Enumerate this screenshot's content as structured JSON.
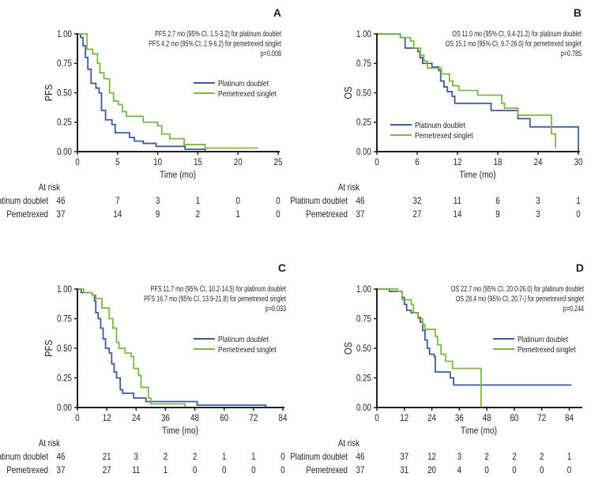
{
  "chart_data": [
    {
      "type": "line",
      "panel_label": "A",
      "ylabel": "PFS",
      "xlabel": "Time (mo)",
      "xlim": [
        0,
        25
      ],
      "ylim": [
        0,
        1
      ],
      "xticks": [
        "0",
        "5",
        "10",
        "15",
        "20",
        "25"
      ],
      "yticks": [
        "0.00",
        "0.25",
        "0.50",
        "0.75",
        "1.00"
      ],
      "annotation": [
        "PFS 2.7 mo (95% CI, 1.5-3.2) for platinum doublet",
        "PFS 4.2 mo  (95% CI, 2.9-6.2) for pemetrexed singlet",
        "p=0.008"
      ],
      "legend_placement": "center-right",
      "series": [
        {
          "name": "Platinum doublet",
          "color": "#3d5b99",
          "steps": [
            [
              0,
              1
            ],
            [
              0.4,
              0.97
            ],
            [
              0.7,
              0.9
            ],
            [
              1.0,
              0.8
            ],
            [
              1.3,
              0.7
            ],
            [
              1.7,
              0.58
            ],
            [
              2.3,
              0.54
            ],
            [
              2.7,
              0.5
            ],
            [
              3.0,
              0.35
            ],
            [
              3.5,
              0.27
            ],
            [
              4.3,
              0.23
            ],
            [
              4.7,
              0.16
            ],
            [
              6.5,
              0.12
            ],
            [
              7.1,
              0.09
            ],
            [
              8.2,
              0.07
            ],
            [
              9.8,
              0.045
            ],
            [
              13.4,
              0.02
            ],
            [
              15.9,
              0
            ]
          ],
          "end": 15.9
        },
        {
          "name": "Pemetrexed singlet",
          "color": "#7db547",
          "steps": [
            [
              0,
              1
            ],
            [
              1.2,
              0.87
            ],
            [
              1.9,
              0.83
            ],
            [
              2.5,
              0.75
            ],
            [
              2.8,
              0.67
            ],
            [
              3.3,
              0.62
            ],
            [
              4.0,
              0.5
            ],
            [
              4.5,
              0.43
            ],
            [
              5.1,
              0.4
            ],
            [
              5.6,
              0.34
            ],
            [
              6.1,
              0.3
            ],
            [
              8.2,
              0.25
            ],
            [
              10.0,
              0.22
            ],
            [
              10.5,
              0.15
            ],
            [
              11.5,
              0.11
            ],
            [
              13.3,
              0.06
            ],
            [
              15.9,
              0.03
            ]
          ],
          "end": 22.5
        }
      ],
      "at_risk": {
        "title": "At risk",
        "rows": [
          {
            "label": "Platinum doublet",
            "values": [
              "46",
              "7",
              "3",
              "1",
              "0",
              "0"
            ]
          },
          {
            "label": "Pemetrexed",
            "values": [
              "37",
              "14",
              "9",
              "2",
              "1",
              "0"
            ]
          }
        ]
      }
    },
    {
      "type": "line",
      "panel_label": "B",
      "ylabel": "OS",
      "xlabel": "Time (mo)",
      "xlim": [
        0,
        30
      ],
      "ylim": [
        0,
        1
      ],
      "xticks": [
        "0",
        "6",
        "12",
        "18",
        "24",
        "30"
      ],
      "yticks": [
        "0.00",
        "0.25",
        "0.50",
        "0.75",
        "1.00"
      ],
      "annotation": [
        "OS 11.0 mo (95% CI, 9.4-21.2) for platinum doublet",
        "OS 15.1 mo (95% CI, 9.7-26.0) for pemetrexed singlet",
        "p=0.785"
      ],
      "legend_placement": "bottom-left",
      "series": [
        {
          "name": "Platinum doublet",
          "color": "#3d5b99",
          "steps": [
            [
              0,
              1
            ],
            [
              3.5,
              0.97
            ],
            [
              4.2,
              0.88
            ],
            [
              6.1,
              0.85
            ],
            [
              6.4,
              0.8
            ],
            [
              6.8,
              0.75
            ],
            [
              8.2,
              0.72
            ],
            [
              9.2,
              0.69
            ],
            [
              9.5,
              0.6
            ],
            [
              10.0,
              0.55
            ],
            [
              10.5,
              0.51
            ],
            [
              11.2,
              0.47
            ],
            [
              11.6,
              0.41
            ],
            [
              17.0,
              0.35
            ],
            [
              21.0,
              0.28
            ],
            [
              22.8,
              0.21
            ],
            [
              30.0,
              0
            ]
          ],
          "end": 30
        },
        {
          "name": "Pemetrexed singlet",
          "color": "#7db547",
          "steps": [
            [
              0,
              1
            ],
            [
              3.5,
              0.97
            ],
            [
              5.0,
              0.94
            ],
            [
              5.5,
              0.88
            ],
            [
              6.5,
              0.82
            ],
            [
              7.0,
              0.77
            ],
            [
              7.5,
              0.71
            ],
            [
              9.6,
              0.66
            ],
            [
              10.8,
              0.6
            ],
            [
              11.3,
              0.56
            ],
            [
              12.2,
              0.52
            ],
            [
              15.0,
              0.48
            ],
            [
              18.6,
              0.41
            ],
            [
              19.0,
              0.37
            ],
            [
              21.0,
              0.31
            ],
            [
              26.0,
              0.15
            ],
            [
              26.6,
              0.03
            ]
          ],
          "end": 26.6
        }
      ],
      "at_risk": {
        "title": "At risk",
        "rows": [
          {
            "label": "Platinum doublet",
            "values": [
              "46",
              "32",
              "11",
              "6",
              "3",
              "1"
            ]
          },
          {
            "label": "Pemetrexed",
            "values": [
              "37",
              "27",
              "14",
              "9",
              "3",
              "0"
            ]
          }
        ]
      }
    },
    {
      "type": "line",
      "panel_label": "C",
      "ylabel": "PFS",
      "xlabel": "Time (mo)",
      "xlim": [
        0,
        84
      ],
      "ylim": [
        0,
        1
      ],
      "xticks": [
        "0",
        "12",
        "24",
        "36",
        "48",
        "60",
        "72",
        "84"
      ],
      "yticks": [
        "0.00",
        "0.25",
        "0.50",
        "0.75",
        "1.00"
      ],
      "annotation": [
        "PFS 11.7 mo (95% CI, 10.2-14.5) for platinum doublet",
        "PFS 16.7 mo (95% CI, 13.9-21.8) for pemetrexed singlet",
        "p=0.033"
      ],
      "legend_placement": "center-right",
      "series": [
        {
          "name": "Platinum doublet",
          "color": "#3d5b99",
          "steps": [
            [
              0,
              1
            ],
            [
              1.5,
              0.97
            ],
            [
              6,
              0.95
            ],
            [
              7,
              0.9
            ],
            [
              7.5,
              0.8
            ],
            [
              8.5,
              0.75
            ],
            [
              9.5,
              0.67
            ],
            [
              10.5,
              0.58
            ],
            [
              11.5,
              0.5
            ],
            [
              13,
              0.46
            ],
            [
              14,
              0.37
            ],
            [
              15,
              0.3
            ],
            [
              16,
              0.25
            ],
            [
              17.5,
              0.15
            ],
            [
              18.5,
              0.12
            ],
            [
              23,
              0.08
            ],
            [
              28,
              0.05
            ],
            [
              49,
              0.02
            ],
            [
              77,
              0
            ]
          ],
          "end": 77
        },
        {
          "name": "Pemetrexed singlet",
          "color": "#7db547",
          "steps": [
            [
              0,
              1
            ],
            [
              2.5,
              0.97
            ],
            [
              6,
              0.95
            ],
            [
              7.5,
              0.92
            ],
            [
              10,
              0.84
            ],
            [
              13,
              0.75
            ],
            [
              14.5,
              0.67
            ],
            [
              16,
              0.55
            ],
            [
              17,
              0.5
            ],
            [
              19.5,
              0.46
            ],
            [
              22,
              0.43
            ],
            [
              23,
              0.33
            ],
            [
              25,
              0.27
            ],
            [
              26,
              0.17
            ],
            [
              29,
              0.08
            ],
            [
              30,
              0.03
            ],
            [
              44,
              0
            ]
          ],
          "end": 44
        }
      ],
      "at_risk": {
        "title": "At risk",
        "rows": [
          {
            "label": "Platinum doublet",
            "values": [
              "46",
              "21",
              "3",
              "2",
              "2",
              "1",
              "1",
              "0"
            ]
          },
          {
            "label": "Pemetrexed",
            "values": [
              "37",
              "27",
              "11",
              "1",
              "0",
              "0",
              "0",
              "0"
            ]
          }
        ]
      }
    },
    {
      "type": "line",
      "panel_label": "D",
      "ylabel": "OS",
      "xlabel": "Time (mo)",
      "xlim": [
        0,
        89
      ],
      "ylim": [
        0,
        1
      ],
      "xticks": [
        "0",
        "12",
        "24",
        "36",
        "48",
        "60",
        "72",
        "84"
      ],
      "yticks": [
        "0.00",
        "0.25",
        "0.50",
        "0.75",
        "1.00"
      ],
      "annotation": [
        "OS 22.7 mo (95% CI, 20.0-26.0) for platinum doublet",
        "OS 28.4 mo (95% CI, 20.7-) for pemetrexed singlet",
        "p=0.244"
      ],
      "legend_placement": "center-right",
      "series": [
        {
          "name": "Platinum doublet",
          "color": "#3d5b99",
          "steps": [
            [
              0,
              1
            ],
            [
              5.5,
              0.98
            ],
            [
              11,
              0.93
            ],
            [
              12,
              0.87
            ],
            [
              13,
              0.82
            ],
            [
              15,
              0.8
            ],
            [
              18,
              0.76
            ],
            [
              19,
              0.72
            ],
            [
              20,
              0.65
            ],
            [
              21,
              0.57
            ],
            [
              22,
              0.5
            ],
            [
              23,
              0.45
            ],
            [
              25,
              0.43
            ],
            [
              25.5,
              0.3
            ],
            [
              32,
              0.25
            ],
            [
              33.5,
              0.19
            ]
          ],
          "end": 85
        },
        {
          "name": "Pemetrexed singlet",
          "color": "#7db547",
          "steps": [
            [
              0,
              1
            ],
            [
              9,
              0.98
            ],
            [
              11,
              0.91
            ],
            [
              15,
              0.87
            ],
            [
              16,
              0.8
            ],
            [
              18,
              0.75
            ],
            [
              20,
              0.7
            ],
            [
              21,
              0.66
            ],
            [
              25.5,
              0.6
            ],
            [
              26.5,
              0.53
            ],
            [
              28,
              0.45
            ],
            [
              30,
              0.39
            ],
            [
              33,
              0.33
            ],
            [
              45.5,
              0
            ]
          ],
          "end": 45.5
        }
      ],
      "at_risk": {
        "title": "At risk",
        "rows": [
          {
            "label": "Platinum doublet",
            "values": [
              "46",
              "37",
              "12",
              "3",
              "2",
              "2",
              "2",
              "1"
            ]
          },
          {
            "label": "Pemetrexed",
            "values": [
              "37",
              "31",
              "20",
              "4",
              "0",
              "0",
              "0",
              "0"
            ]
          }
        ]
      }
    }
  ]
}
